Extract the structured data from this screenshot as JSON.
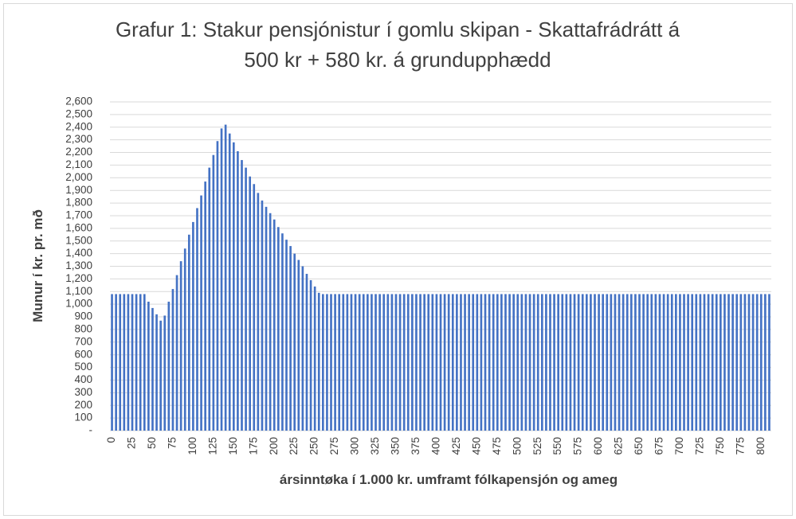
{
  "chart_data": {
    "type": "bar",
    "title": [
      "Grafur 1: Stakur pensjónistur  í gomlu skipan - Skattafrádrátt á",
      "500 kr + 580 kr. á grundupphædd"
    ],
    "x_label": "ársinntøka í 1.000 kr. umframt fólkapensjón og ameg",
    "y_label": "Munur í kr. pr. mð",
    "color": "#4472c4",
    "grid": true,
    "ylim": [
      0,
      2600
    ],
    "yticks": [
      {
        "value": 0,
        "label": "-"
      },
      100,
      200,
      300,
      400,
      500,
      600,
      700,
      800,
      900,
      {
        "value": 1000,
        "label": "1,000"
      },
      {
        "value": 1100,
        "label": "1,100"
      },
      {
        "value": 1200,
        "label": "1,200"
      },
      {
        "value": 1300,
        "label": "1,300"
      },
      {
        "value": 1400,
        "label": "1,400"
      },
      {
        "value": 1500,
        "label": "1,500"
      },
      {
        "value": 1600,
        "label": "1,600"
      },
      {
        "value": 1700,
        "label": "1,700"
      },
      {
        "value": 1800,
        "label": "1,800"
      },
      {
        "value": 1900,
        "label": "1,900"
      },
      {
        "value": 2000,
        "label": "2,000"
      },
      {
        "value": 2100,
        "label": "2,100"
      },
      {
        "value": 2200,
        "label": "2,200"
      },
      {
        "value": 2300,
        "label": "2,300"
      },
      {
        "value": 2400,
        "label": "2,400"
      },
      {
        "value": 2500,
        "label": "2,500"
      },
      {
        "value": 2600,
        "label": "2,600"
      }
    ],
    "categories": [
      "0",
      null,
      null,
      null,
      null,
      "25",
      null,
      null,
      null,
      null,
      "50",
      null,
      null,
      null,
      null,
      "75",
      null,
      null,
      null,
      null,
      "100",
      null,
      null,
      null,
      null,
      "125",
      null,
      null,
      null,
      null,
      "150",
      null,
      null,
      null,
      null,
      "175",
      null,
      null,
      null,
      null,
      "200",
      null,
      null,
      null,
      null,
      "225",
      null,
      null,
      null,
      null,
      "250",
      null,
      null,
      null,
      null,
      "275",
      null,
      null,
      null,
      null,
      "300",
      null,
      null,
      null,
      null,
      "325",
      null,
      null,
      null,
      null,
      "350",
      null,
      null,
      null,
      null,
      "375",
      null,
      null,
      null,
      null,
      "400",
      null,
      null,
      null,
      null,
      "425",
      null,
      null,
      null,
      null,
      "450",
      null,
      null,
      null,
      null,
      "475",
      null,
      null,
      null,
      null,
      "500",
      null,
      null,
      null,
      null,
      "525",
      null,
      null,
      null,
      null,
      "550",
      null,
      null,
      null,
      null,
      "575",
      null,
      null,
      null,
      null,
      "600",
      null,
      null,
      null,
      null,
      "625",
      null,
      null,
      null,
      null,
      "650",
      null,
      null,
      null,
      null,
      "675",
      null,
      null,
      null,
      null,
      "700",
      null,
      null,
      null,
      null,
      "725",
      null,
      null,
      null,
      null,
      "750",
      null,
      null,
      null,
      null,
      "775",
      null,
      null,
      null,
      null,
      "800",
      null,
      null
    ],
    "values": [
      1080,
      1080,
      1080,
      1080,
      1080,
      1080,
      1080,
      1080,
      1080,
      1020,
      970,
      920,
      870,
      910,
      1020,
      1120,
      1230,
      1340,
      1440,
      1550,
      1650,
      1760,
      1860,
      1970,
      2080,
      2180,
      2290,
      2390,
      2420,
      2350,
      2280,
      2210,
      2140,
      2080,
      2010,
      1950,
      1880,
      1820,
      1770,
      1720,
      1670,
      1610,
      1560,
      1510,
      1460,
      1400,
      1350,
      1300,
      1240,
      1190,
      1140,
      1090,
      1080,
      1080,
      1080,
      1080,
      1080,
      1080,
      1080,
      1080,
      1080,
      1080,
      1080,
      1080,
      1080,
      1080,
      1080,
      1080,
      1080,
      1080,
      1080,
      1080,
      1080,
      1080,
      1080,
      1080,
      1080,
      1080,
      1080,
      1080,
      1080,
      1080,
      1080,
      1080,
      1080,
      1080,
      1080,
      1080,
      1080,
      1080,
      1080,
      1080,
      1080,
      1080,
      1080,
      1080,
      1080,
      1080,
      1080,
      1080,
      1080,
      1080,
      1080,
      1080,
      1080,
      1080,
      1080,
      1080,
      1080,
      1080,
      1080,
      1080,
      1080,
      1080,
      1080,
      1080,
      1080,
      1080,
      1080,
      1080,
      1080,
      1080,
      1080,
      1080,
      1080,
      1080,
      1080,
      1080,
      1080,
      1080,
      1080,
      1080,
      1080,
      1080,
      1080,
      1080,
      1080,
      1080,
      1080,
      1080,
      1080,
      1080,
      1080,
      1080,
      1080,
      1080,
      1080,
      1080,
      1080,
      1080,
      1080,
      1080,
      1080,
      1080,
      1080,
      1080,
      1080,
      1080,
      1080,
      1080,
      1080,
      1080,
      1080
    ]
  }
}
